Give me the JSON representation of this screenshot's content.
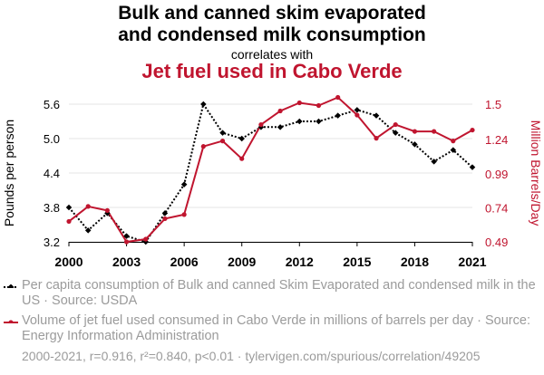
{
  "header": {
    "title_line1": "Bulk and canned skim evaporated",
    "title_line2": "and condensed milk consumption",
    "subtitle": "correlates with",
    "title2": "Jet fuel used in Cabo Verde"
  },
  "legend": {
    "series1": "Per capita consumption of Bulk and canned Skim Evaporated and condensed milk in the US · Source: USDA",
    "series2": "Volume of jet fuel used consumed in Cabo Verde in millions of barrels per day · Source: Energy Information Administration"
  },
  "footer": "2000-2021, r=0.916, r²=0.840, p<0.01 · tylervigen.com/spurious/correlation/49205",
  "chart_data": {
    "type": "line",
    "x": [
      2000,
      2001,
      2002,
      2003,
      2004,
      2005,
      2006,
      2007,
      2008,
      2009,
      2010,
      2011,
      2012,
      2013,
      2014,
      2015,
      2016,
      2017,
      2018,
      2019,
      2020,
      2021
    ],
    "xticks": [
      2000,
      2003,
      2006,
      2009,
      2012,
      2015,
      2018,
      2021
    ],
    "series": [
      {
        "name": "Pounds per person",
        "axis": "left",
        "color": "#000000",
        "style": "dotted",
        "values": [
          3.8,
          3.4,
          3.7,
          3.3,
          3.2,
          3.7,
          4.2,
          5.6,
          5.1,
          5.0,
          5.2,
          5.2,
          5.3,
          5.3,
          5.4,
          5.5,
          5.4,
          5.1,
          4.9,
          4.6,
          4.8,
          4.5
        ]
      },
      {
        "name": "Million Barrels/Day",
        "axis": "right",
        "color": "#c0152f",
        "style": "solid",
        "values": [
          0.64,
          0.75,
          0.72,
          0.49,
          0.51,
          0.66,
          0.69,
          1.19,
          1.23,
          1.1,
          1.35,
          1.45,
          1.51,
          1.49,
          1.55,
          1.42,
          1.25,
          1.35,
          1.3,
          1.3,
          1.23,
          1.31
        ]
      }
    ],
    "ylabel_left": "Pounds per person",
    "ylabel_right": "Million Barrels/Day",
    "yticks_left": [
      "3.2",
      "3.8",
      "4.4",
      "5.0",
      "5.6"
    ],
    "yticks_right": [
      "0.49",
      "0.74",
      "0.99",
      "1.24",
      "1.5"
    ],
    "ylim_left": [
      3.2,
      5.6
    ],
    "ylim_right": [
      0.49,
      1.5
    ],
    "grid": true
  }
}
